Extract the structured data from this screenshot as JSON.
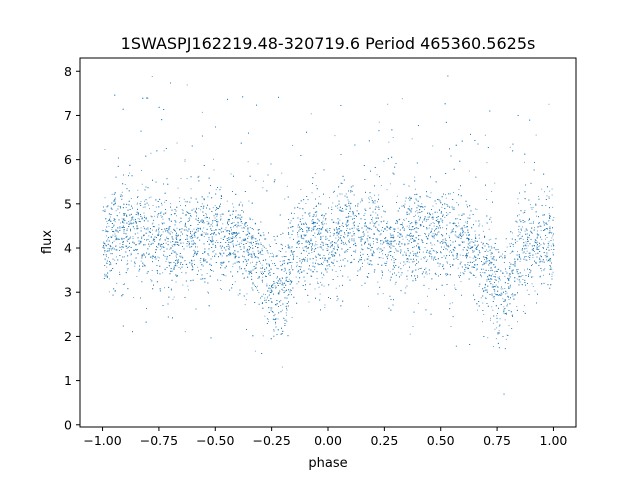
{
  "chart_data": {
    "type": "scatter",
    "title": "1SWASPJ162219.48-320719.6 Period 465360.5625s",
    "xlabel": "phase",
    "ylabel": "flux",
    "xlim": [
      -1.1,
      1.1
    ],
    "ylim": [
      -0.05,
      8.3
    ],
    "xticks": [
      -1.0,
      -0.75,
      -0.5,
      -0.25,
      0.0,
      0.25,
      0.5,
      0.75,
      1.0
    ],
    "xtick_labels": [
      "−1.00",
      "−0.75",
      "−0.50",
      "−0.25",
      "0.00",
      "0.25",
      "0.50",
      "0.75",
      "1.00"
    ],
    "yticks": [
      0,
      1,
      2,
      3,
      4,
      5,
      6,
      7,
      8
    ],
    "ytick_labels": [
      "0",
      "1",
      "2",
      "3",
      "4",
      "5",
      "6",
      "7",
      "8"
    ],
    "grid": false,
    "marker_color": "#1f77b4",
    "series_profile": {
      "phase_x": [
        -1.0,
        -0.95,
        -0.9,
        -0.85,
        -0.8,
        -0.75,
        -0.7,
        -0.65,
        -0.6,
        -0.55,
        -0.5,
        -0.45,
        -0.4,
        -0.35,
        -0.3,
        -0.25,
        -0.2,
        -0.15,
        -0.1,
        -0.05,
        0.0,
        0.05,
        0.1,
        0.15,
        0.2,
        0.25,
        0.3,
        0.35,
        0.4,
        0.45,
        0.5,
        0.55,
        0.6,
        0.65,
        0.7,
        0.75,
        0.8,
        0.85,
        0.9,
        0.95,
        1.0
      ],
      "median_flux": [
        4.0,
        4.3,
        4.4,
        4.2,
        4.3,
        4.2,
        4.1,
        4.3,
        4.2,
        4.2,
        4.3,
        4.2,
        4.1,
        3.9,
        3.6,
        3.0,
        3.2,
        3.9,
        4.1,
        4.2,
        4.0,
        4.3,
        4.4,
        4.2,
        4.3,
        4.2,
        4.1,
        4.3,
        4.2,
        4.2,
        4.3,
        4.2,
        4.1,
        3.9,
        3.6,
        3.0,
        3.2,
        3.9,
        4.1,
        4.2,
        4.0
      ],
      "scatter_spread": 0.55,
      "point_count": 9000
    }
  }
}
